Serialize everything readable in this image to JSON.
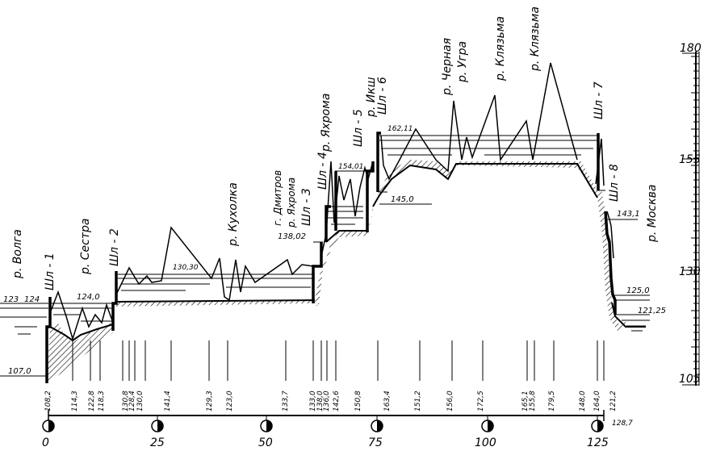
{
  "right_scale": {
    "labels": [
      "180",
      "155",
      "130",
      "105"
    ]
  },
  "stations": [
    {
      "name": "р. Волга"
    },
    {
      "name": "Шл - 1"
    },
    {
      "name": "р. Сестра"
    },
    {
      "name": "Шл - 2"
    },
    {
      "name": "р. Кухолка"
    },
    {
      "name": "г. Дмитров"
    },
    {
      "name": "р. Яхрома"
    },
    {
      "name": "Шл - 3"
    },
    {
      "name": "Шл - 4"
    },
    {
      "name": "р. Яхрома"
    },
    {
      "name": "Шл - 5"
    },
    {
      "name": "р. Икш"
    },
    {
      "name": "Шл - 6"
    },
    {
      "name": "р. Черная"
    },
    {
      "name": "р. Угра"
    },
    {
      "name": "р. Клязьма"
    },
    {
      "name": "р. Клязьма"
    },
    {
      "name": "Шл - 7"
    },
    {
      "name": "Шл - 8"
    },
    {
      "name": "р. Москва"
    }
  ],
  "water_levels": [
    {
      "value": "123"
    },
    {
      "value": "124"
    },
    {
      "value": "124,0"
    },
    {
      "value": "107,0"
    },
    {
      "value": "130,30"
    },
    {
      "value": "138,02"
    },
    {
      "value": "154,01"
    },
    {
      "value": "162,11"
    },
    {
      "value": "145,0"
    },
    {
      "value": "143,1"
    },
    {
      "value": "125,0"
    },
    {
      "value": "121,25"
    }
  ],
  "ground_elevations": [
    {
      "value": "108,2"
    },
    {
      "value": "114,3"
    },
    {
      "value": "122,8"
    },
    {
      "value": "118,3"
    },
    {
      "value": "130,8"
    },
    {
      "value": "128,4"
    },
    {
      "value": "130,0"
    },
    {
      "value": "141,4"
    },
    {
      "value": "129,3"
    },
    {
      "value": "123,0"
    },
    {
      "value": "133,7"
    },
    {
      "value": "133,0"
    },
    {
      "value": "138,0"
    },
    {
      "value": "136,0"
    },
    {
      "value": "142,6"
    },
    {
      "value": "150,8"
    },
    {
      "value": "163,4"
    },
    {
      "value": "151,2"
    },
    {
      "value": "156,0"
    },
    {
      "value": "172,5"
    },
    {
      "value": "165,1"
    },
    {
      "value": "155,8"
    },
    {
      "value": "179,5"
    },
    {
      "value": "148,0"
    },
    {
      "value": "164,0"
    },
    {
      "value": "121,2"
    },
    {
      "value": "128,7"
    }
  ],
  "distance_axis": {
    "labels": [
      "0",
      "25",
      "50",
      "75",
      "100",
      "125"
    ]
  }
}
